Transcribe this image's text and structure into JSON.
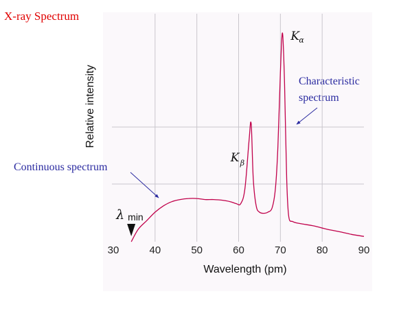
{
  "slide": {
    "title": "X-ray Spectrum",
    "notes": [
      {
        "id": "continuous",
        "lines": [
          "Continuous spectrum"
        ]
      },
      {
        "id": "characteristic",
        "lines": [
          "Characteristic",
          "spectrum"
        ]
      }
    ],
    "colors": {
      "title": "#e00000",
      "notes": "#2a2aa0",
      "curve": "#c0004a",
      "arrows": "#2a2aa0"
    }
  },
  "chart_data": {
    "type": "line",
    "xlabel": "Wavelength (pm)",
    "ylabel": "Relative intensity",
    "xlim": [
      30,
      90
    ],
    "xticks": [
      30,
      40,
      50,
      60,
      70,
      80,
      90
    ],
    "ylim": [
      0,
      1
    ],
    "grid": true,
    "annotations": [
      {
        "name": "lambda_min",
        "symbol": "λ",
        "subscript": "min",
        "x": 34.3
      },
      {
        "name": "K_beta",
        "symbol": "K",
        "subscript": "β",
        "x": 63.0
      },
      {
        "name": "K_alpha",
        "symbol": "K",
        "subscript": "α",
        "x": 70.5
      }
    ],
    "series": [
      {
        "values": [
          [
            34.3,
            0.0
          ],
          [
            36,
            0.06
          ],
          [
            38,
            0.1
          ],
          [
            40,
            0.14
          ],
          [
            42,
            0.17
          ],
          [
            44,
            0.19
          ],
          [
            46,
            0.2
          ],
          [
            48,
            0.205
          ],
          [
            50,
            0.205
          ],
          [
            52,
            0.2
          ],
          [
            54,
            0.2
          ],
          [
            56,
            0.197
          ],
          [
            58,
            0.19
          ],
          [
            59.5,
            0.18
          ],
          [
            60.5,
            0.18
          ],
          [
            61.5,
            0.25
          ],
          [
            62.5,
            0.48
          ],
          [
            63.0,
            0.56
          ],
          [
            63.5,
            0.3
          ],
          [
            64.2,
            0.17
          ],
          [
            65,
            0.14
          ],
          [
            66,
            0.135
          ],
          [
            67,
            0.14
          ],
          [
            68,
            0.16
          ],
          [
            68.8,
            0.25
          ],
          [
            69.4,
            0.45
          ],
          [
            70.0,
            0.8
          ],
          [
            70.5,
            0.99
          ],
          [
            71.0,
            0.75
          ],
          [
            71.5,
            0.3
          ],
          [
            72.0,
            0.12
          ],
          [
            73,
            0.095
          ],
          [
            75,
            0.085
          ],
          [
            78,
            0.075
          ],
          [
            81,
            0.06
          ],
          [
            84,
            0.048
          ],
          [
            87,
            0.035
          ],
          [
            90,
            0.025
          ]
        ]
      }
    ]
  }
}
